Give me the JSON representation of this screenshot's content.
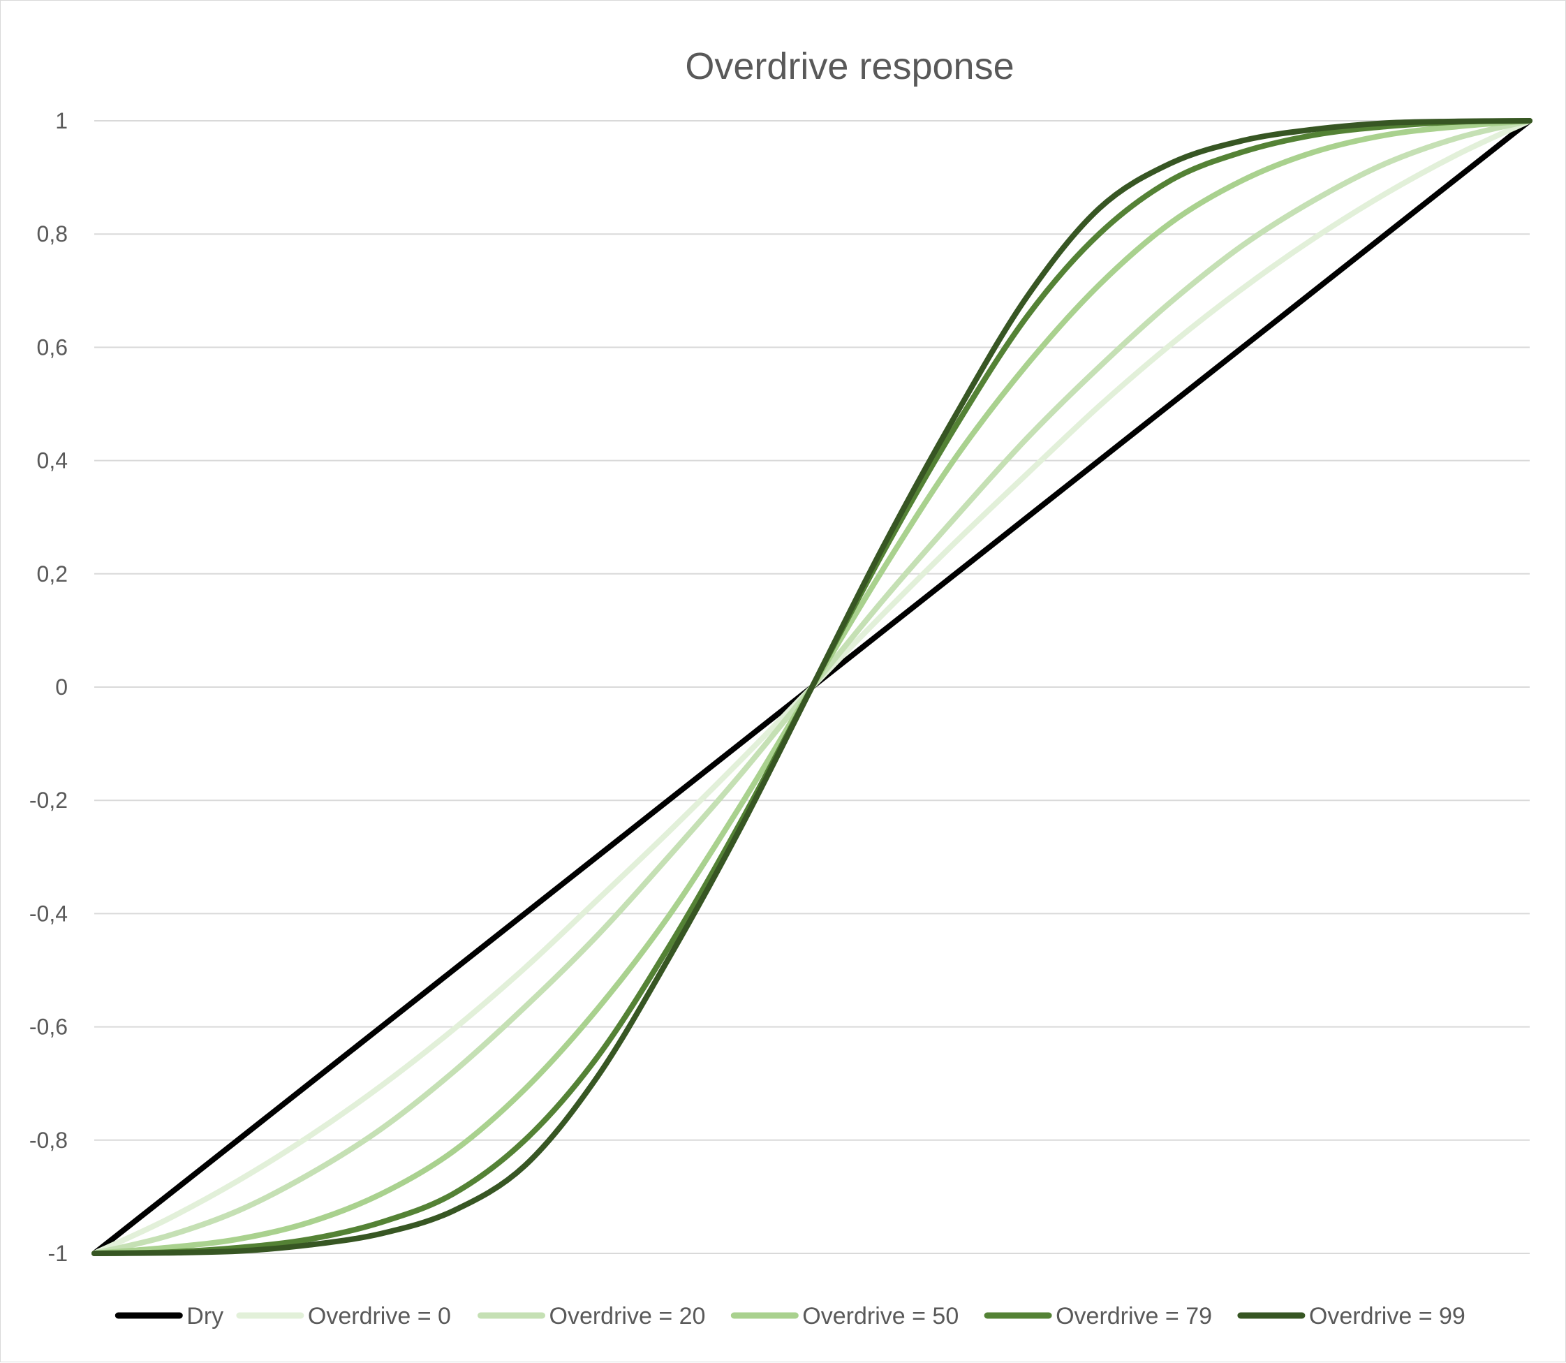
{
  "chart_data": {
    "type": "line",
    "title": "Overdrive response",
    "xlabel": "",
    "ylabel": "",
    "ylim": [
      -1,
      1
    ],
    "y_ticks": [
      "1",
      "0,8",
      "0,6",
      "0,4",
      "0,2",
      "0",
      "-0,2",
      "-0,4",
      "-0,6",
      "-0,8",
      "-1"
    ],
    "y_tick_values": [
      1,
      0.8,
      0.6,
      0.4,
      0.2,
      0,
      -0.2,
      -0.4,
      -0.6,
      -0.8,
      -1
    ],
    "grid": true,
    "legend_position": "bottom",
    "x": [
      -1,
      -0.9,
      -0.8,
      -0.7,
      -0.6,
      -0.5,
      -0.4,
      -0.3,
      -0.2,
      -0.1,
      0,
      0.1,
      0.2,
      0.3,
      0.4,
      0.5,
      0.6,
      0.7,
      0.8,
      0.9,
      1
    ],
    "series": [
      {
        "name": "Dry",
        "color": "#000000",
        "values": [
          -1,
          -0.9,
          -0.8,
          -0.7,
          -0.6,
          -0.5,
          -0.4,
          -0.3,
          -0.2,
          -0.1,
          0,
          0.1,
          0.2,
          0.3,
          0.4,
          0.5,
          0.6,
          0.7,
          0.8,
          0.9,
          1
        ]
      },
      {
        "name": "Overdrive = 0",
        "color": "#e2f0d9",
        "values": [
          -1,
          -0.941,
          -0.872,
          -0.793,
          -0.704,
          -0.605,
          -0.496,
          -0.377,
          -0.256,
          -0.13,
          0,
          0.13,
          0.256,
          0.377,
          0.496,
          0.605,
          0.704,
          0.793,
          0.872,
          0.941,
          1
        ]
      },
      {
        "name": "Overdrive = 20",
        "color": "#c5e0b4",
        "values": [
          -1,
          -0.97,
          -0.925,
          -0.86,
          -0.78,
          -0.68,
          -0.565,
          -0.44,
          -0.3,
          -0.155,
          0,
          0.155,
          0.3,
          0.44,
          0.565,
          0.68,
          0.78,
          0.86,
          0.925,
          0.97,
          1
        ]
      },
      {
        "name": "Overdrive = 50",
        "color": "#a9d18e",
        "values": [
          -1,
          -0.99,
          -0.975,
          -0.945,
          -0.895,
          -0.82,
          -0.71,
          -0.57,
          -0.405,
          -0.21,
          0,
          0.21,
          0.405,
          0.57,
          0.71,
          0.82,
          0.895,
          0.945,
          0.975,
          0.99,
          1
        ]
      },
      {
        "name": "Overdrive = 79",
        "color": "#548235",
        "values": [
          -1,
          -0.998,
          -0.99,
          -0.975,
          -0.945,
          -0.895,
          -0.8,
          -0.655,
          -0.46,
          -0.24,
          0,
          0.24,
          0.46,
          0.655,
          0.8,
          0.895,
          0.945,
          0.975,
          0.99,
          0.998,
          1
        ]
      },
      {
        "name": "Overdrive = 99",
        "color": "#375623",
        "values": [
          -1,
          -0.999,
          -0.996,
          -0.985,
          -0.965,
          -0.925,
          -0.845,
          -0.69,
          -0.48,
          -0.25,
          0,
          0.25,
          0.48,
          0.69,
          0.845,
          0.925,
          0.965,
          0.985,
          0.996,
          0.999,
          1
        ]
      }
    ]
  }
}
